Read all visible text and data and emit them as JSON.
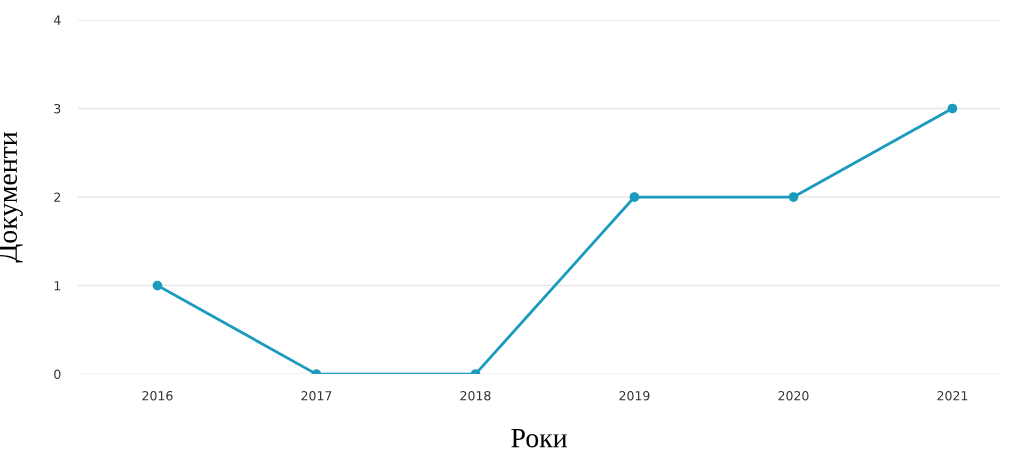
{
  "chart_data": {
    "type": "line",
    "xlabel": "Роки",
    "ylabel": "Документи",
    "categories": [
      "2016",
      "2017",
      "2018",
      "2019",
      "2020",
      "2021"
    ],
    "series": [
      {
        "color": "#1b9bbd",
        "values": [
          1,
          0,
          0,
          2,
          2,
          3
        ]
      }
    ],
    "ylim": [
      0,
      4
    ],
    "yticks": [
      0,
      1,
      2,
      3,
      4
    ],
    "grid": "y",
    "marker": "circle",
    "line_style": "solid",
    "legend": false
  }
}
